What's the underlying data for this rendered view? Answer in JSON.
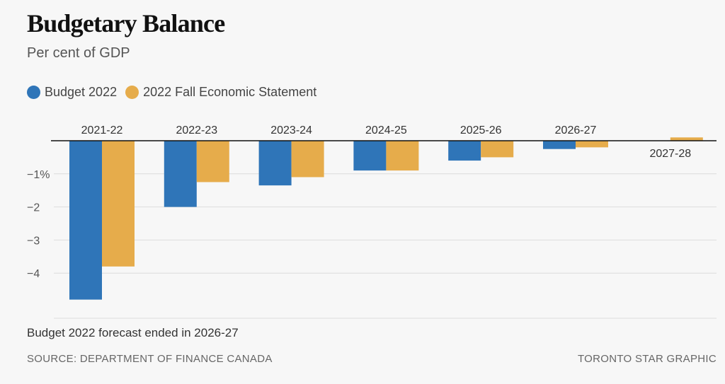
{
  "header": {
    "title": "Budgetary Balance",
    "subtitle": "Per cent of GDP"
  },
  "legend": [
    {
      "label": "Budget 2022",
      "color": "#2f75b8"
    },
    {
      "label": "2022 Fall Economic Statement",
      "color": "#e6ac4b"
    }
  ],
  "chart_data": {
    "type": "bar",
    "title": "Budgetary Balance",
    "subtitle": "Per cent of GDP",
    "categories": [
      "2021-22",
      "2022-23",
      "2023-24",
      "2024-25",
      "2025-26",
      "2026-27",
      "2027-28"
    ],
    "series": [
      {
        "name": "Budget 2022",
        "color": "#2f75b8",
        "values": [
          -4.8,
          -2.0,
          -1.35,
          -0.9,
          -0.6,
          -0.25,
          null
        ]
      },
      {
        "name": "2022 Fall Economic Statement",
        "color": "#e6ac4b",
        "values": [
          -3.8,
          -1.25,
          -1.1,
          -0.9,
          -0.5,
          -0.2,
          0.1
        ]
      }
    ],
    "y_ticks": [
      {
        "value": -1,
        "label": "−1%"
      },
      {
        "value": -2,
        "label": "−2"
      },
      {
        "value": -3,
        "label": "−3"
      },
      {
        "value": -4,
        "label": "−4"
      }
    ],
    "ylim": [
      -5.4,
      0.2
    ],
    "grid": true,
    "legend_position": "top-left"
  },
  "footer": {
    "note": "Budget 2022 forecast ended in 2026-27",
    "source": "SOURCE: DEPARTMENT OF FINANCE CANADA",
    "credit": "TORONTO STAR GRAPHIC"
  }
}
